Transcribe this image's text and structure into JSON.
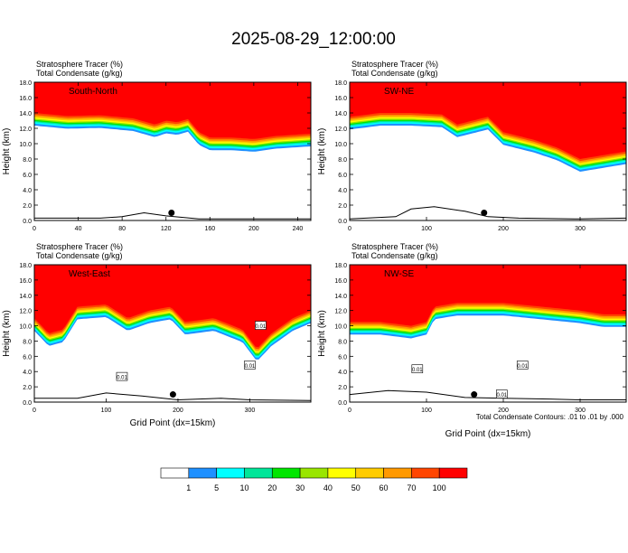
{
  "title": "2025-08-29_12:00:00",
  "footer_note": "Total Condensate Contours: .01 to .01 by .000",
  "colorbar": {
    "colors": [
      "#ffffff",
      "#1e90ff",
      "#00ffff",
      "#00e699",
      "#00e600",
      "#99e600",
      "#ffff00",
      "#ffcc00",
      "#ff9900",
      "#ff4500",
      "#ff0000"
    ],
    "labels": [
      "1",
      "5",
      "10",
      "20",
      "30",
      "40",
      "50",
      "60",
      "70",
      "100"
    ]
  },
  "chart_data": [
    {
      "type": "heatmap",
      "panel": "South-North",
      "title_line1": "Stratosphere Tracer    (%)",
      "title_line2": "Total Condensate    (g/kg)",
      "ylabel": "Height (km)",
      "xlabel": "",
      "xlim": [
        0,
        252
      ],
      "ylim": [
        0,
        18
      ],
      "xticks": [
        "0",
        "40",
        "80",
        "120",
        "160",
        "200",
        "240"
      ],
      "yticks": [
        "0.0",
        "2.0",
        "4.0",
        "6.0",
        "8.0",
        "10.0",
        "12.0",
        "14.0",
        "16.0",
        "18.0"
      ],
      "tracer_base_km": [
        [
          0,
          14.0
        ],
        [
          30,
          13.6
        ],
        [
          60,
          13.7
        ],
        [
          90,
          13.3
        ],
        [
          110,
          12.5
        ],
        [
          120,
          13.0
        ],
        [
          130,
          12.8
        ],
        [
          140,
          13.2
        ],
        [
          150,
          11.5
        ],
        [
          160,
          10.8
        ],
        [
          180,
          10.8
        ],
        [
          200,
          10.6
        ],
        [
          220,
          11.0
        ],
        [
          252,
          11.3
        ]
      ],
      "terrain_km": [
        [
          0,
          0.3
        ],
        [
          60,
          0.3
        ],
        [
          80,
          0.5
        ],
        [
          100,
          1.0
        ],
        [
          120,
          0.6
        ],
        [
          150,
          0.2
        ],
        [
          252,
          0.2
        ]
      ],
      "marker": [
        125,
        1.0
      ],
      "contour_labels": []
    },
    {
      "type": "heatmap",
      "panel": "SW-NE",
      "title_line1": "Stratosphere Tracer    (%)",
      "title_line2": "Total Condensate    (g/kg)",
      "ylabel": "Height (km)",
      "xlabel": "",
      "xlim": [
        0,
        360
      ],
      "ylim": [
        0,
        18
      ],
      "xticks": [
        "0",
        "100",
        "200",
        "300"
      ],
      "yticks": [
        "0.0",
        "2.0",
        "4.0",
        "6.0",
        "8.0",
        "10.0",
        "12.0",
        "14.0",
        "16.0",
        "18.0"
      ],
      "tracer_base_km": [
        [
          0,
          13.5
        ],
        [
          40,
          14.0
        ],
        [
          80,
          14.0
        ],
        [
          120,
          13.8
        ],
        [
          140,
          12.5
        ],
        [
          160,
          13.0
        ],
        [
          180,
          13.5
        ],
        [
          200,
          11.5
        ],
        [
          240,
          10.5
        ],
        [
          270,
          9.5
        ],
        [
          300,
          8.0
        ],
        [
          330,
          8.5
        ],
        [
          360,
          9.0
        ]
      ],
      "terrain_km": [
        [
          0,
          0.2
        ],
        [
          60,
          0.5
        ],
        [
          80,
          1.5
        ],
        [
          110,
          1.8
        ],
        [
          150,
          1.2
        ],
        [
          180,
          0.5
        ],
        [
          220,
          0.3
        ],
        [
          300,
          0.2
        ],
        [
          360,
          0.3
        ]
      ],
      "marker": [
        175,
        1.0
      ],
      "contour_labels": []
    },
    {
      "type": "heatmap",
      "panel": "West-East",
      "title_line1": "Stratosphere Tracer    (%)",
      "title_line2": "Total Condensate    (g/kg)",
      "ylabel": "Height (km)",
      "xlabel": "Grid Point (dx=15km)",
      "xlim": [
        0,
        385
      ],
      "ylim": [
        0,
        18
      ],
      "xticks": [
        "0",
        "100",
        "200",
        "300"
      ],
      "yticks": [
        "0.0",
        "2.0",
        "4.0",
        "6.0",
        "8.0",
        "10.0",
        "12.0",
        "14.0",
        "16.0",
        "18.0"
      ],
      "tracer_base_km": [
        [
          0,
          11.0
        ],
        [
          20,
          9.0
        ],
        [
          40,
          9.5
        ],
        [
          60,
          12.5
        ],
        [
          100,
          12.8
        ],
        [
          130,
          11.0
        ],
        [
          160,
          12.0
        ],
        [
          190,
          12.5
        ],
        [
          210,
          10.5
        ],
        [
          250,
          11.0
        ],
        [
          290,
          9.5
        ],
        [
          310,
          7.0
        ],
        [
          330,
          9.0
        ],
        [
          360,
          11.0
        ],
        [
          385,
          12.0
        ]
      ],
      "terrain_km": [
        [
          0,
          0.5
        ],
        [
          60,
          0.5
        ],
        [
          100,
          1.2
        ],
        [
          150,
          0.8
        ],
        [
          200,
          0.3
        ],
        [
          260,
          0.5
        ],
        [
          300,
          0.3
        ],
        [
          385,
          0.2
        ]
      ],
      "marker": [
        193,
        1.0
      ],
      "contour_labels": [
        {
          "x": 122,
          "y": 3.3,
          "text": "0.01"
        },
        {
          "x": 300,
          "y": 4.8,
          "text": "0.01"
        },
        {
          "x": 315,
          "y": 10.0,
          "text": "0.01"
        }
      ]
    },
    {
      "type": "heatmap",
      "panel": "NW-SE",
      "title_line1": "Stratosphere Tracer    (%)",
      "title_line2": "Total Condensate    (g/kg)",
      "ylabel": "Height (km)",
      "xlabel": "Grid Point (dx=15km)",
      "xlim": [
        0,
        360
      ],
      "ylim": [
        0,
        18
      ],
      "xticks": [
        "0",
        "100",
        "200",
        "300"
      ],
      "yticks": [
        "0.0",
        "2.0",
        "4.0",
        "6.0",
        "8.0",
        "10.0",
        "12.0",
        "14.0",
        "16.0",
        "18.0"
      ],
      "tracer_base_km": [
        [
          0,
          10.5
        ],
        [
          40,
          10.5
        ],
        [
          80,
          10.0
        ],
        [
          100,
          10.5
        ],
        [
          110,
          12.5
        ],
        [
          140,
          13.0
        ],
        [
          200,
          13.0
        ],
        [
          250,
          12.5
        ],
        [
          300,
          12.0
        ],
        [
          330,
          11.5
        ],
        [
          360,
          11.5
        ]
      ],
      "terrain_km": [
        [
          0,
          1.0
        ],
        [
          50,
          1.5
        ],
        [
          100,
          1.3
        ],
        [
          150,
          0.6
        ],
        [
          200,
          0.5
        ],
        [
          260,
          0.4
        ],
        [
          300,
          0.3
        ],
        [
          360,
          0.3
        ]
      ],
      "marker": [
        162,
        1.0
      ],
      "contour_labels": [
        {
          "x": 88,
          "y": 4.3,
          "text": "0.01"
        },
        {
          "x": 198,
          "y": 1.0,
          "text": "0.01"
        },
        {
          "x": 225,
          "y": 4.8,
          "text": "0.01"
        }
      ]
    }
  ]
}
